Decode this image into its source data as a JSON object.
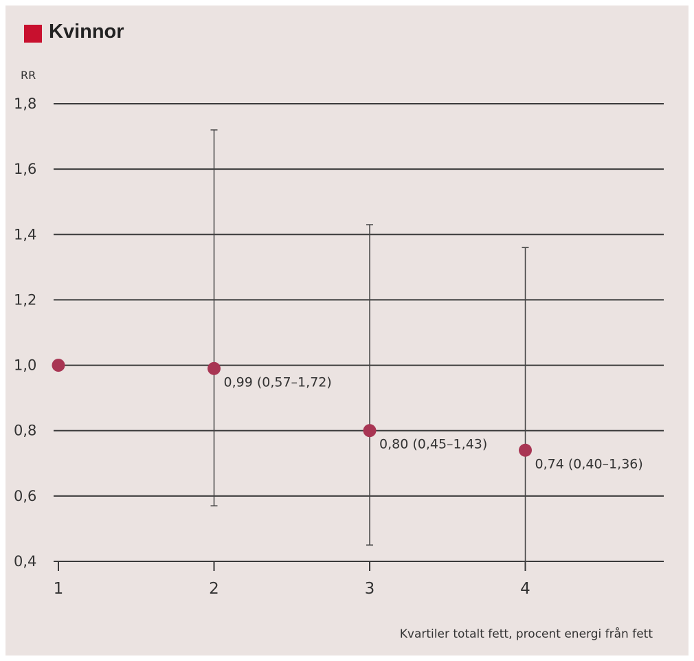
{
  "chart_data": {
    "type": "scatter",
    "title": "",
    "legend": {
      "label": "Kvinnor",
      "color": "#c8102e",
      "placement": "top-left"
    },
    "ylabel": "RR",
    "xlabel": "Kvartiler totalt fett, procent energi från fett",
    "ylim": [
      0.4,
      1.8
    ],
    "yticks": [
      0.4,
      0.6,
      0.8,
      1.0,
      1.2,
      1.4,
      1.6,
      1.8
    ],
    "ytick_labels": [
      "0,4",
      "0,6",
      "0,8",
      "1,0",
      "1,2",
      "1,4",
      "1,6",
      "1,8"
    ],
    "x": [
      1,
      2,
      3,
      4
    ],
    "xtick_labels": [
      "1",
      "2",
      "3",
      "4"
    ],
    "grid": "horizontal",
    "point_color": "#a83553",
    "points": [
      {
        "x": 1,
        "y": 1.0,
        "low": null,
        "high": null,
        "label": ""
      },
      {
        "x": 2,
        "y": 0.99,
        "low": 0.57,
        "high": 1.72,
        "label": "0,99 (0,57–1,72)"
      },
      {
        "x": 3,
        "y": 0.8,
        "low": 0.45,
        "high": 1.43,
        "label": "0,80 (0,45–1,43)"
      },
      {
        "x": 4,
        "y": 0.74,
        "low": 0.4,
        "high": 1.36,
        "label": "0,74 (0,40–1,36)"
      }
    ]
  }
}
